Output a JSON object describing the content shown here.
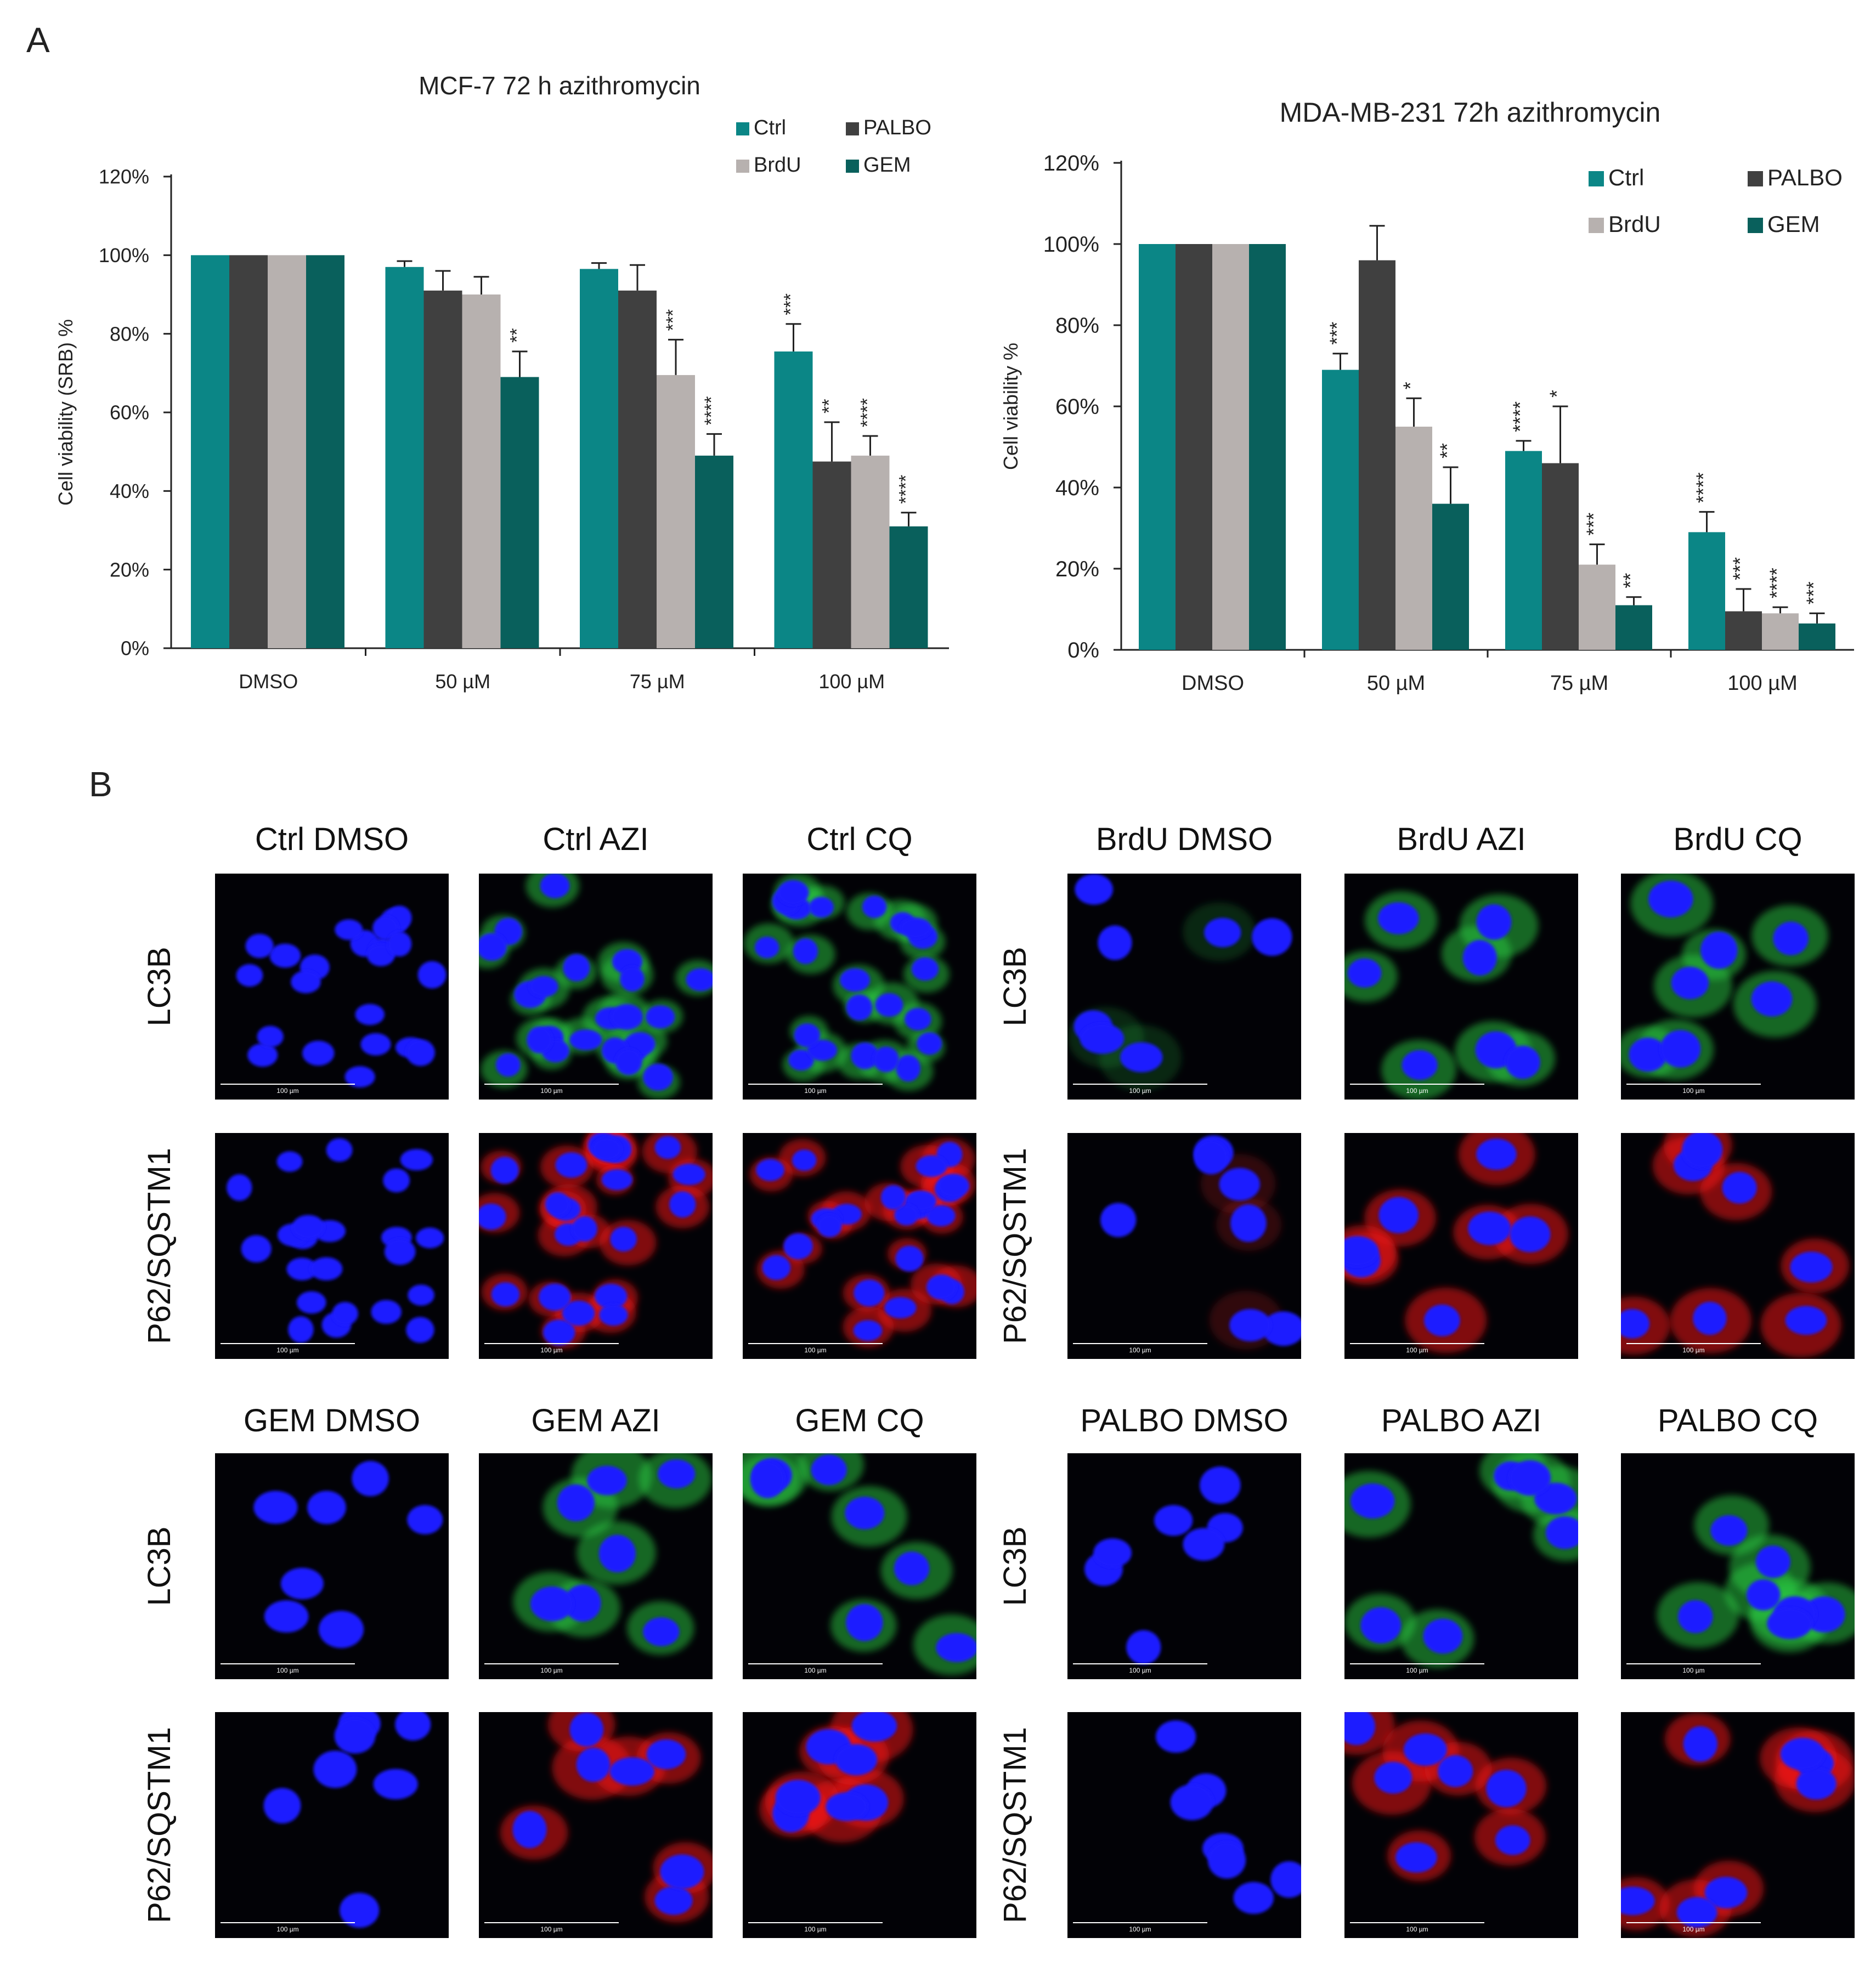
{
  "panel_labels": {
    "a": "A",
    "b": "B"
  },
  "colors": {
    "Ctrl": "#0b8686",
    "PALBO": "#404040",
    "BrdU": "#b7b1af",
    "GEM": "#09605c",
    "axis": "#222222",
    "error_bar": "#222222",
    "scale_bar": "#ffffff",
    "nucleus": "#1a1aff",
    "lc3b": "#2ecc40",
    "p62": "#ff1a1a",
    "micrograph_bg": "#020206"
  },
  "chart_data": [
    {
      "type": "bar",
      "title": "MCF-7 72 h azithromycin",
      "xlabel": "",
      "ylabel": "Cell viability (SRB) %",
      "ylim": [
        0,
        120
      ],
      "ytick_labels": [
        "0%",
        "20%",
        "40%",
        "60%",
        "80%",
        "100%",
        "120%"
      ],
      "categories": [
        "DMSO",
        "50 µM",
        "75 µM",
        "100 µM"
      ],
      "legend": [
        "Ctrl",
        "PALBO",
        "BrdU",
        "GEM"
      ],
      "legend_position": "top-right",
      "series": [
        {
          "name": "Ctrl",
          "values": [
            100,
            97,
            96.5,
            75.5
          ],
          "errors": [
            0,
            1.5,
            1.5,
            7
          ],
          "significance": [
            "",
            "",
            "",
            "***"
          ]
        },
        {
          "name": "PALBO",
          "values": [
            100,
            91,
            91,
            47.5
          ],
          "errors": [
            0,
            5,
            6.5,
            10
          ],
          "significance": [
            "",
            "",
            "",
            "**"
          ]
        },
        {
          "name": "BrdU",
          "values": [
            100,
            90,
            69.5,
            49
          ],
          "errors": [
            0,
            4.5,
            9,
            5
          ],
          "significance": [
            "",
            "",
            "***",
            "****"
          ]
        },
        {
          "name": "GEM",
          "values": [
            100,
            69,
            49,
            31
          ],
          "errors": [
            0,
            6.5,
            5.5,
            3.5
          ],
          "significance": [
            "",
            "**",
            "****",
            "****"
          ]
        }
      ]
    },
    {
      "type": "bar",
      "title": "MDA-MB-231 72h azithromycin",
      "xlabel": "",
      "ylabel": "Cell viability %",
      "ylim": [
        0,
        120
      ],
      "ytick_labels": [
        "0%",
        "20%",
        "40%",
        "60%",
        "80%",
        "100%",
        "120%"
      ],
      "categories": [
        "DMSO",
        "50 µM",
        "75 µM",
        "100 µM"
      ],
      "legend": [
        "Ctrl",
        "PALBO",
        "BrdU",
        "GEM"
      ],
      "legend_position": "top-right",
      "series": [
        {
          "name": "Ctrl",
          "values": [
            100,
            69,
            49,
            29
          ],
          "errors": [
            0,
            4,
            2.5,
            5
          ],
          "significance": [
            "",
            "***",
            "****",
            "****"
          ]
        },
        {
          "name": "PALBO",
          "values": [
            100,
            96,
            46,
            9.5
          ],
          "errors": [
            0,
            8.5,
            14,
            5.5
          ],
          "significance": [
            "",
            "",
            "*",
            "***"
          ]
        },
        {
          "name": "BrdU",
          "values": [
            100,
            55,
            21,
            9
          ],
          "errors": [
            0,
            7,
            5,
            1.5
          ],
          "significance": [
            "",
            "*",
            "***",
            "****"
          ]
        },
        {
          "name": "GEM",
          "values": [
            100,
            36,
            11,
            6.5
          ],
          "errors": [
            0,
            9,
            2,
            2.5
          ],
          "significance": [
            "",
            "**",
            "**",
            "***"
          ]
        }
      ]
    }
  ],
  "micrograph_groups": [
    {
      "columns": [
        "Ctrl DMSO",
        "Ctrl AZI",
        "Ctrl CQ"
      ],
      "rows": [
        "LC3B",
        "P62/SQSTM1"
      ]
    },
    {
      "columns": [
        "BrdU DMSO",
        "BrdU AZI",
        "BrdU CQ"
      ],
      "rows": [
        "LC3B",
        "P62/SQSTM1"
      ]
    },
    {
      "columns": [
        "GEM DMSO",
        "GEM AZI",
        "GEM CQ"
      ],
      "rows": [
        "LC3B",
        "P62/SQSTM1"
      ]
    },
    {
      "columns": [
        "PALBO DMSO",
        "PALBO AZI",
        "PALBO CQ"
      ],
      "rows": [
        "LC3B",
        "P62/SQSTM1"
      ]
    }
  ],
  "scale_bar_label": "100 µm"
}
